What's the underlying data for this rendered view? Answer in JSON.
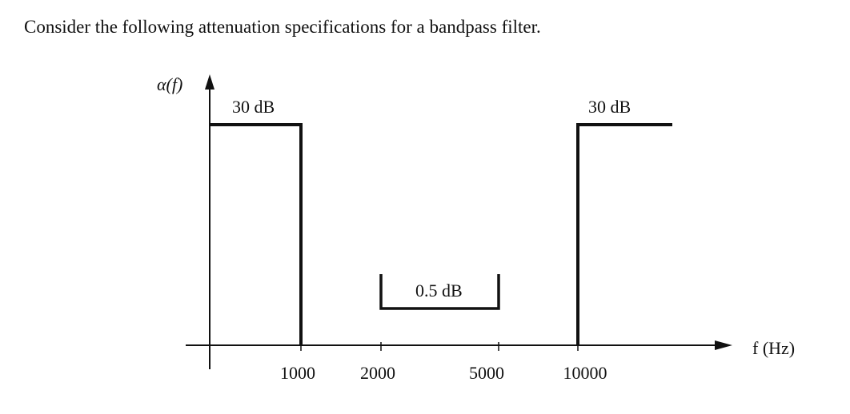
{
  "intro_text": "Consider the following attenuation specifications for a bandpass filter.",
  "y_axis_label": "α(f)",
  "x_axis_label": "f (Hz)",
  "stopband_left_label": "30 dB",
  "stopband_right_label": "30 dB",
  "passband_label": "0.5 dB",
  "ticks": {
    "t1000": "1000",
    "t2000": "2000",
    "t5000": "5000",
    "t10000": "10000"
  }
}
